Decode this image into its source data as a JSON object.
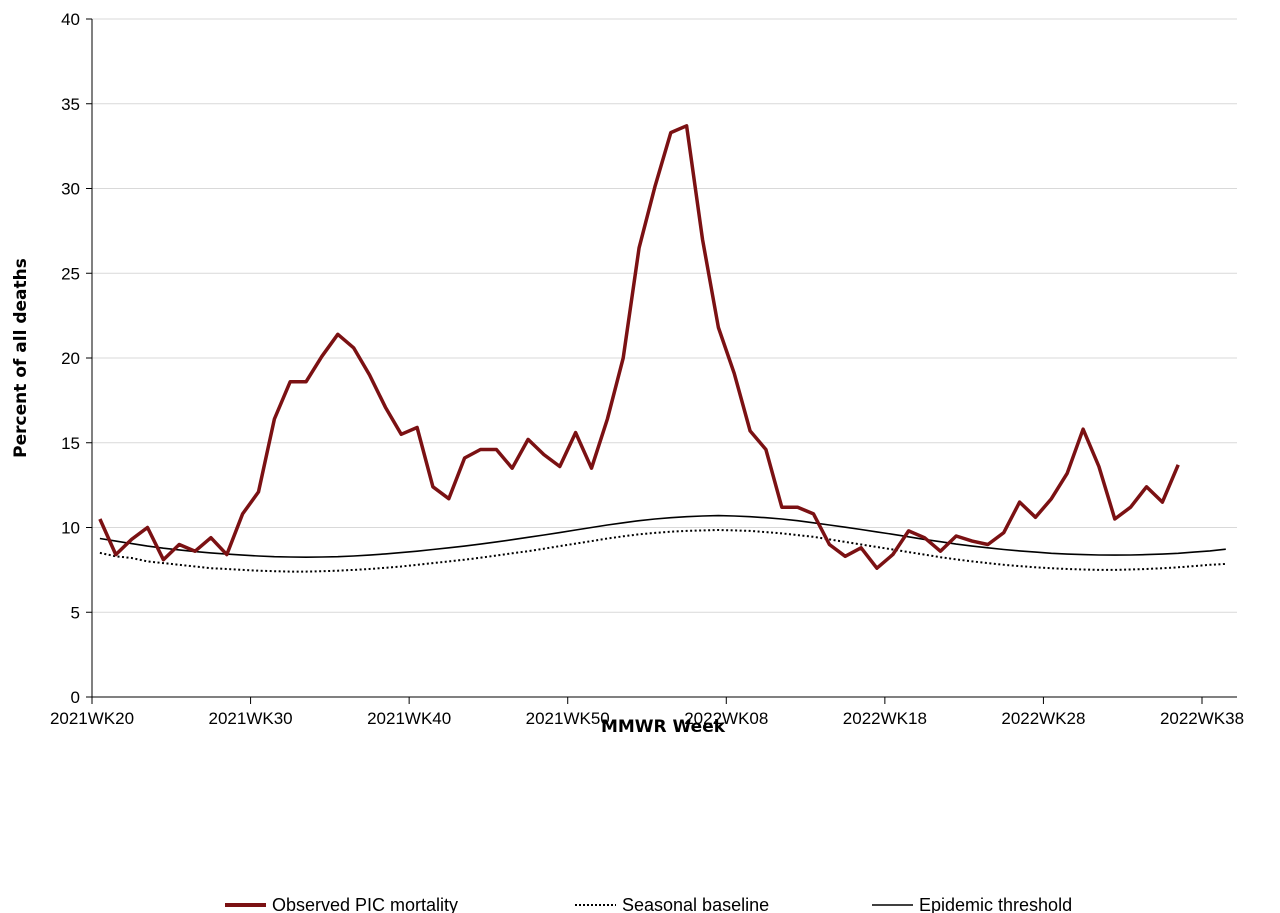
{
  "chart_data": {
    "type": "line",
    "title": "",
    "xlabel": "MMWR Week",
    "ylabel": "Percent of all deaths",
    "ylim": [
      0,
      40
    ],
    "yticks": [
      0,
      5,
      10,
      15,
      20,
      25,
      30,
      35,
      40
    ],
    "x_tick_labels": [
      "2021WK20",
      "2021WK30",
      "2021WK40",
      "2021WK50",
      "2022WK08",
      "2022WK18",
      "2022WK28",
      "2022WK38"
    ],
    "x_tick_index": [
      0,
      10,
      20,
      30,
      40,
      50,
      60,
      70
    ],
    "grid": "horizontal",
    "legend_position": "bottom",
    "colors": {
      "observed": "#7B1113",
      "baseline": "#000000",
      "threshold": "#000000"
    },
    "series": [
      {
        "name": "Observed PIC mortality",
        "style": "solid-thick",
        "values": [
          10.5,
          8.4,
          9.3,
          10.0,
          8.1,
          9.0,
          8.6,
          9.4,
          8.4,
          10.8,
          12.1,
          16.4,
          18.6,
          18.6,
          20.1,
          21.4,
          20.6,
          19.0,
          17.1,
          15.5,
          15.9,
          12.4,
          11.7,
          14.1,
          14.6,
          14.6,
          13.5,
          15.2,
          14.3,
          13.6,
          15.6,
          13.5,
          16.4,
          20.0,
          26.5,
          30.1,
          33.3,
          33.7,
          27.0,
          21.8,
          19.1,
          15.7,
          14.6,
          11.2,
          11.2,
          10.8,
          9.0,
          8.3,
          8.8,
          7.6,
          8.4,
          9.8,
          9.4,
          8.6,
          9.5,
          9.2,
          9.0,
          9.7,
          11.5,
          10.6,
          11.7,
          13.2,
          15.8,
          13.6,
          10.5,
          11.2,
          12.4,
          11.5,
          13.7
        ]
      },
      {
        "name": "Seasonal baseline",
        "style": "dotted",
        "values": [
          8.5,
          8.3,
          8.2,
          8.0,
          7.9,
          7.8,
          7.7,
          7.6,
          7.55,
          7.5,
          7.45,
          7.42,
          7.4,
          7.4,
          7.42,
          7.45,
          7.5,
          7.55,
          7.62,
          7.7,
          7.8,
          7.9,
          8.0,
          8.1,
          8.22,
          8.35,
          8.48,
          8.6,
          8.75,
          8.9,
          9.05,
          9.2,
          9.35,
          9.48,
          9.6,
          9.68,
          9.75,
          9.8,
          9.83,
          9.85,
          9.83,
          9.8,
          9.73,
          9.65,
          9.55,
          9.45,
          9.3,
          9.15,
          9.0,
          8.85,
          8.7,
          8.55,
          8.4,
          8.25,
          8.12,
          8.0,
          7.9,
          7.8,
          7.72,
          7.65,
          7.6,
          7.55,
          7.52,
          7.5,
          7.5,
          7.52,
          7.55,
          7.6,
          7.65,
          7.72,
          7.8,
          7.85
        ]
      },
      {
        "name": "Epidemic threshold",
        "style": "solid-thin",
        "values": [
          9.35,
          9.2,
          9.05,
          8.9,
          8.78,
          8.68,
          8.58,
          8.5,
          8.43,
          8.37,
          8.32,
          8.28,
          8.26,
          8.25,
          8.26,
          8.28,
          8.32,
          8.37,
          8.44,
          8.52,
          8.6,
          8.7,
          8.8,
          8.9,
          9.02,
          9.15,
          9.28,
          9.42,
          9.56,
          9.7,
          9.85,
          10.0,
          10.15,
          10.28,
          10.4,
          10.5,
          10.58,
          10.64,
          10.68,
          10.7,
          10.68,
          10.64,
          10.58,
          10.5,
          10.4,
          10.28,
          10.15,
          10.02,
          9.88,
          9.74,
          9.6,
          9.45,
          9.3,
          9.16,
          9.02,
          8.9,
          8.8,
          8.7,
          8.62,
          8.55,
          8.48,
          8.43,
          8.4,
          8.38,
          8.37,
          8.38,
          8.4,
          8.43,
          8.48,
          8.55,
          8.62,
          8.72
        ]
      }
    ]
  }
}
